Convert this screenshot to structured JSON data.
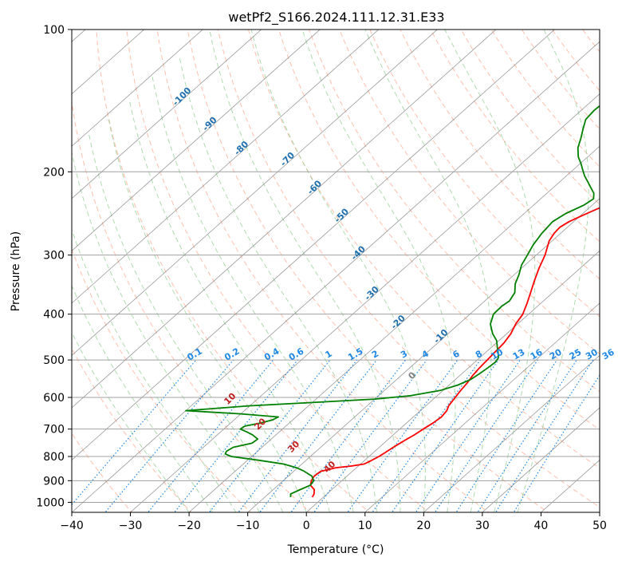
{
  "chart_data": {
    "type": "line",
    "title": "wetPf2_S166.2024.111.12.31.E33",
    "xlabel": "Temperature (°C)",
    "ylabel": "Pressure (hPa)",
    "xlim": [
      -40,
      50
    ],
    "ylim": [
      1050,
      100
    ],
    "y_scale": "log",
    "grid": true,
    "x_ticks": [
      -40,
      -30,
      -20,
      -10,
      0,
      10,
      20,
      30,
      40,
      50
    ],
    "x_tick_labels": [
      "−40",
      "−30",
      "−20",
      "−10",
      "0",
      "10",
      "20",
      "30",
      "40",
      "50"
    ],
    "y_ticks": [
      1000,
      900,
      800,
      700,
      600,
      500,
      400,
      300,
      200,
      100
    ],
    "y_tick_labels": [
      "1000",
      "900",
      "800",
      "700",
      "600",
      "500",
      "400",
      "300",
      "200",
      "100"
    ],
    "colors": {
      "temperature": "#ff0000",
      "dewpoint": "#008000",
      "isotherm": "#808080",
      "dry_adiabat": "#ff9c7c",
      "moist_adiabat": "#8ccc8c",
      "mixing_ratio": "#1e88e5",
      "ice_temp_labels": "#2070b0",
      "moist_labels": "#c02020"
    },
    "series": [
      {
        "key": "temperature",
        "p": [
          975,
          960,
          940,
          920,
          900,
          880,
          860,
          845,
          838,
          830,
          820,
          800,
          780,
          760,
          740,
          720,
          700,
          680,
          660,
          640,
          625,
          610,
          600,
          580,
          560,
          540,
          520,
          500,
          480,
          460,
          440,
          420,
          400,
          380,
          360,
          340,
          320,
          300,
          280,
          270,
          262,
          255,
          248,
          240,
          230,
          220,
          210,
          200,
          190,
          180,
          170,
          160,
          150,
          140,
          130,
          120,
          110,
          100
        ],
        "t": [
          -1.9,
          -2.2,
          -3.0,
          -4.5,
          -5.2,
          -5.6,
          -5.4,
          -3.5,
          -1.2,
          0.6,
          1.0,
          1.7,
          2.1,
          2.5,
          3.0,
          3.6,
          4.0,
          4.5,
          4.8,
          4.5,
          3.9,
          3.6,
          3.4,
          3.0,
          2.7,
          2.2,
          1.9,
          1.7,
          1.5,
          1.3,
          0.7,
          -0.3,
          -1.0,
          -2.3,
          -3.8,
          -5.4,
          -7.0,
          -8.5,
          -10.5,
          -11.1,
          -11.3,
          -10.8,
          -9.8,
          -8.5,
          -6.5,
          -4.4,
          -1.8,
          1.0,
          4.0,
          6.8,
          9.6,
          11.4,
          13.0,
          14.2,
          15.6,
          16.9,
          18.9,
          21.2
        ]
      },
      {
        "key": "dewpoint",
        "p": [
          975,
          960,
          940,
          920,
          900,
          880,
          860,
          845,
          830,
          815,
          800,
          790,
          780,
          765,
          750,
          735,
          720,
          710,
          700,
          690,
          680,
          670,
          660,
          650,
          640,
          625,
          615,
          605,
          595,
          580,
          565,
          550,
          535,
          520,
          505,
          495,
          485,
          470,
          455,
          440,
          420,
          400,
          385,
          375,
          360,
          345,
          330,
          315,
          300,
          285,
          270,
          255,
          245,
          235,
          228,
          222,
          216,
          210,
          204,
          198,
          192,
          186,
          178,
          170,
          162,
          155,
          148,
          140,
          132,
          125,
          118,
          111,
          105,
          100
        ],
        "t": [
          -5.6,
          -6.2,
          -5.4,
          -4.5,
          -4.8,
          -6.0,
          -8.2,
          -10.2,
          -13.1,
          -18.0,
          -23.5,
          -25.0,
          -25.3,
          -24.9,
          -22.5,
          -22.3,
          -24.0,
          -25.5,
          -27.2,
          -27.0,
          -25.0,
          -23.5,
          -23.0,
          -30.0,
          -40.0,
          -30.0,
          -20.0,
          -10.0,
          -4.5,
          -0.5,
          1.5,
          2.6,
          3.0,
          3.3,
          3.5,
          3.2,
          2.4,
          1.0,
          -0.4,
          -2.4,
          -4.6,
          -6.0,
          -6.1,
          -5.8,
          -6.5,
          -8.1,
          -9.2,
          -10.6,
          -11.5,
          -12.5,
          -13.2,
          -13.6,
          -12.9,
          -11.4,
          -11.0,
          -12.0,
          -13.6,
          -15.2,
          -16.9,
          -18.4,
          -19.9,
          -21.6,
          -23.4,
          -24.7,
          -26.2,
          -27.5,
          -27.8,
          -27.5,
          -27.5,
          -27.8,
          -27.9,
          -27.8,
          -28.2,
          -29.0
        ]
      }
    ],
    "mixing_ratio_labels": [
      "0.1",
      "0.2",
      "0.4",
      "0.6",
      "1",
      "1.5",
      "2",
      "3",
      "4",
      "6",
      "8",
      "10",
      "13",
      "16",
      "20",
      "25",
      "30",
      "36"
    ],
    "mixing_ratio_values": [
      0.1,
      0.2,
      0.4,
      0.6,
      1,
      1.5,
      2,
      3,
      4,
      6,
      8,
      10,
      13,
      16,
      20,
      25,
      30,
      36
    ],
    "ice_temp_labels": [
      "-100",
      "-90",
      "-80",
      "-70",
      "-60",
      "-50",
      "-40",
      "-30",
      "-20",
      "-10"
    ],
    "ice_temp_values": [
      -100,
      -90,
      -80,
      -70,
      -60,
      -50,
      -40,
      -30,
      -20,
      -10
    ],
    "zero_label": "0",
    "moist_labels": [
      "10",
      "20",
      "30",
      "40"
    ],
    "moist_values": [
      10,
      20,
      30,
      40
    ]
  }
}
